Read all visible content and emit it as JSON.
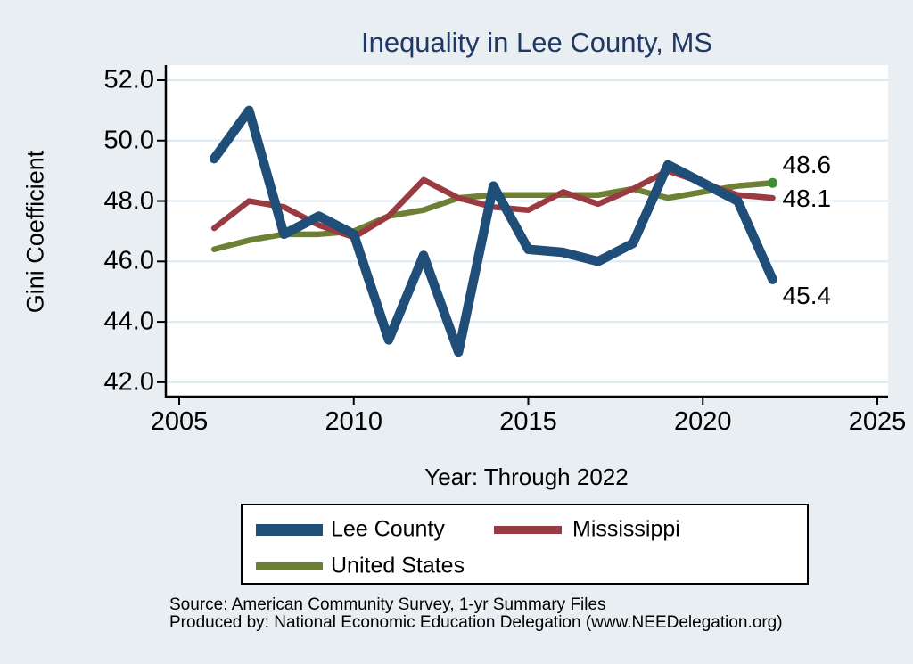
{
  "title": "Inequality in Lee County, MS",
  "y_axis": {
    "label": "Gini Coefficient",
    "tick_labels": [
      "52.0",
      "50.0",
      "48.0",
      "46.0",
      "44.0",
      "42.0"
    ],
    "tick_values": [
      52,
      50,
      48,
      46,
      44,
      42
    ]
  },
  "x_axis": {
    "label": "Year: Through 2022",
    "tick_labels": [
      "2005",
      "2010",
      "2015",
      "2020",
      "2025"
    ],
    "tick_values": [
      2005,
      2010,
      2015,
      2020,
      2025
    ]
  },
  "chart_data": {
    "type": "line",
    "x": [
      2006,
      2007,
      2008,
      2009,
      2010,
      2011,
      2012,
      2013,
      2014,
      2015,
      2016,
      2017,
      2018,
      2019,
      2021,
      2022
    ],
    "series": [
      {
        "name": "United States",
        "color": "#6d8033",
        "values": [
          46.4,
          46.7,
          46.9,
          46.9,
          47.0,
          47.5,
          47.7,
          48.1,
          48.2,
          48.2,
          48.2,
          48.2,
          48.4,
          48.1,
          48.5,
          48.6
        ],
        "end_label": "48.6",
        "end_marker": true,
        "end_marker_color": "#3f9032"
      },
      {
        "name": "Mississippi",
        "color": "#9a3b42",
        "values": [
          47.1,
          48.0,
          47.8,
          47.2,
          46.8,
          47.5,
          48.7,
          48.1,
          47.8,
          47.7,
          48.3,
          47.9,
          48.4,
          49.0,
          48.2,
          48.1
        ],
        "end_label": "48.1",
        "end_marker": false
      },
      {
        "name": "Lee County",
        "color": "#1f4e79",
        "values": [
          49.4,
          51.0,
          46.9,
          47.5,
          46.9,
          43.4,
          46.2,
          43.0,
          48.5,
          46.4,
          46.3,
          46.0,
          46.6,
          49.2,
          48.0,
          45.4
        ],
        "end_label": "45.4",
        "end_marker": false
      }
    ],
    "ylim": [
      42,
      52
    ],
    "xlim": [
      2005,
      2025
    ],
    "grid": true,
    "legend_position": "bottom",
    "title": "Inequality in Lee County, MS",
    "xlabel": "Year: Through 2022",
    "ylabel": "Gini Coefficient"
  },
  "legend": {
    "items": [
      {
        "label": "Lee County",
        "color": "#1f4e79"
      },
      {
        "label": "Mississippi",
        "color": "#9a3b42"
      },
      {
        "label": "United States",
        "color": "#6d8033"
      }
    ]
  },
  "footer": {
    "line1": "Source: American Community Survey, 1-yr Summary Files",
    "line2": "Produced by: National Economic Education Delegation (www.NEEDelegation.org)"
  },
  "colors": {
    "background": "#e8eef2",
    "plot_background": "#ffffff",
    "gridline": "#dce8f0",
    "axis": "#000000",
    "title": "#1f3864",
    "text": "#000000"
  }
}
